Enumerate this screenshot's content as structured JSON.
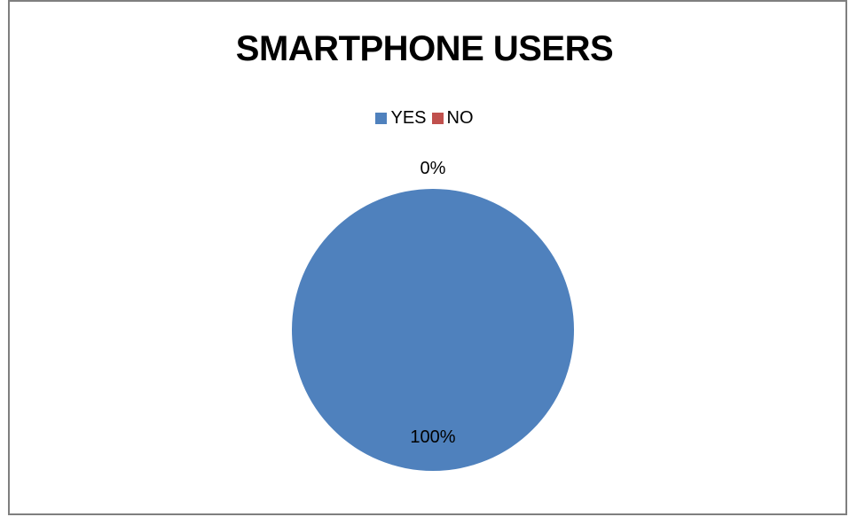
{
  "chart_data": {
    "type": "pie",
    "title": "SMARTPHONE USERS",
    "categories": [
      "YES",
      "NO"
    ],
    "values": [
      100,
      0
    ],
    "data_labels": [
      "100%",
      "0%"
    ],
    "colors": [
      "#4f81bd",
      "#c0504d"
    ],
    "legend_position": "top"
  }
}
